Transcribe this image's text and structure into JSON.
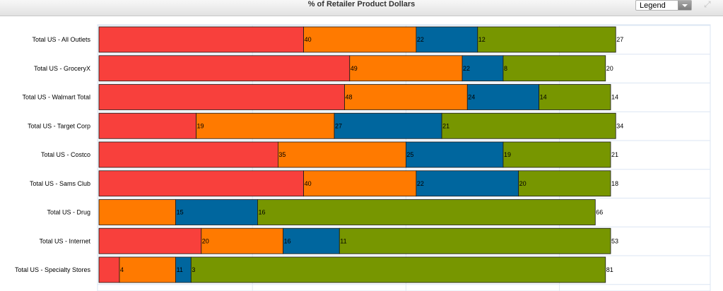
{
  "header": {
    "title": "% of Retailer Product Dollars",
    "legend_label": "Legend"
  },
  "chart_data": {
    "type": "bar",
    "orientation": "horizontal",
    "stacked": true,
    "title": "% of Retailer Product Dollars",
    "xlabel": "",
    "ylabel": "",
    "xlim": [
      0,
      100
    ],
    "grid": true,
    "legend": "collapsed dropdown (top-right)",
    "categories": [
      "Total US - All Outlets",
      "Total US - GroceryX",
      "Total US - Walmart Total",
      "Total US - Target Corp",
      "Total US - Costco",
      "Total US - Sams Club",
      "Total US - Drug",
      "Total US - Internet",
      "Total US - Specialty Stores"
    ],
    "series": [
      {
        "color": "#f8403c",
        "values": [
          40,
          49,
          48,
          19,
          35,
          40,
          0,
          20,
          4
        ]
      },
      {
        "color": "#ff7a00",
        "values": [
          22,
          22,
          24,
          27,
          25,
          22,
          15,
          16,
          11
        ]
      },
      {
        "color": "#00669e",
        "values": [
          12,
          8,
          14,
          21,
          19,
          20,
          16,
          11,
          3
        ]
      },
      {
        "color": "#779600",
        "values": [
          27,
          20,
          14,
          34,
          21,
          18,
          66,
          53,
          81
        ]
      }
    ],
    "data_labels": [
      [
        "40",
        "22",
        "12",
        "27"
      ],
      [
        "49",
        "22",
        "8",
        "20"
      ],
      [
        "48",
        "24",
        "14",
        "14"
      ],
      [
        "19",
        "27",
        "21",
        "34"
      ],
      [
        "35",
        "25",
        "19",
        "21"
      ],
      [
        "40",
        "22",
        "20",
        "18"
      ],
      [
        "",
        "15",
        "16",
        "66"
      ],
      [
        "20",
        "16",
        "11",
        "53"
      ],
      [
        "4",
        "11",
        "3",
        "81"
      ]
    ]
  }
}
